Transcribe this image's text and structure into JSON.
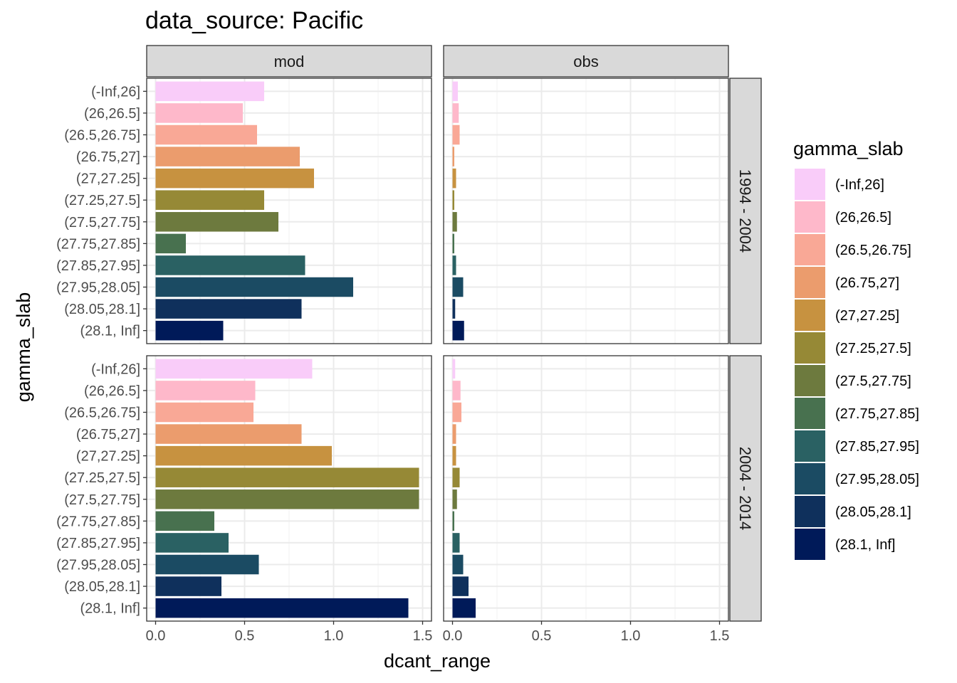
{
  "chart_data": {
    "type": "bar",
    "orientation": "horizontal",
    "title": "data_source: Pacific",
    "xlabel": "dcant_range",
    "ylabel": "gamma_slab",
    "xlim": [
      -0.05,
      1.55
    ],
    "x_ticks": [
      0.0,
      0.5,
      1.0,
      1.5
    ],
    "x_tick_labels": [
      "0.0",
      "0.5",
      "1.0",
      "1.5"
    ],
    "grid": true,
    "legend": {
      "title": "gamma_slab",
      "position": "right"
    },
    "categories": [
      "(-Inf,26]",
      "(26,26.5]",
      "(26.5,26.75]",
      "(26.75,27]",
      "(27,27.25]",
      "(27.25,27.5]",
      "(27.5,27.75]",
      "(27.75,27.85]",
      "(27.85,27.95]",
      "(27.95,28.05]",
      "(28.05,28.1]",
      "(28.1, Inf]"
    ],
    "colors": [
      "#F9CCF9",
      "#FEB8CA",
      "#F9A896",
      "#EB9C6D",
      "#C79240",
      "#968936",
      "#6D7A3E",
      "#48714F",
      "#2A6163",
      "#1B4B63",
      "#0F305C",
      "#001A59"
    ],
    "columns": [
      "mod",
      "obs"
    ],
    "rows": [
      "1994 - 2004",
      "2004 - 2014"
    ],
    "panels": [
      {
        "column": "mod",
        "row": "1994 - 2004",
        "values": [
          0.61,
          0.49,
          0.57,
          0.81,
          0.89,
          0.61,
          0.69,
          0.17,
          0.84,
          1.11,
          0.82,
          0.38
        ]
      },
      {
        "column": "obs",
        "row": "1994 - 2004",
        "values": [
          0.03,
          0.035,
          0.04,
          0.01,
          0.02,
          0.01,
          0.025,
          0.01,
          0.02,
          0.06,
          0.015,
          0.065
        ]
      },
      {
        "column": "mod",
        "row": "2004 - 2014",
        "values": [
          0.88,
          0.56,
          0.55,
          0.82,
          0.99,
          1.48,
          1.48,
          0.33,
          0.41,
          0.58,
          0.37,
          1.42
        ]
      },
      {
        "column": "obs",
        "row": "2004 - 2014",
        "values": [
          0.015,
          0.045,
          0.05,
          0.02,
          0.02,
          0.04,
          0.025,
          0.01,
          0.04,
          0.06,
          0.09,
          0.13
        ]
      }
    ]
  }
}
